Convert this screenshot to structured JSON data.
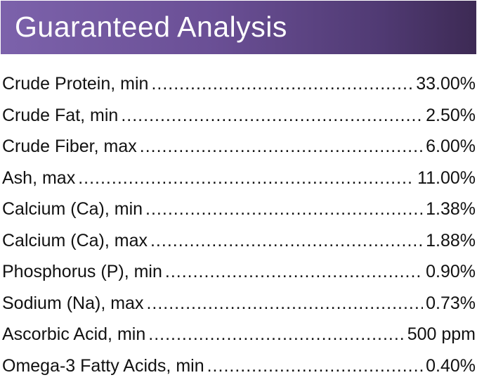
{
  "title": "Guaranteed Analysis",
  "colors": {
    "banner_start": "#7c62ab",
    "banner_end": "#3d2a54",
    "title_text": "#ffffff"
  },
  "rows": [
    {
      "label": "Crude Protein, min",
      "value": "33.00%"
    },
    {
      "label": "Crude Fat, min",
      "value": "2.50%"
    },
    {
      "label": "Crude Fiber, max",
      "value": "6.00%"
    },
    {
      "label": "Ash, max",
      "value": "11.00%"
    },
    {
      "label": "Calcium (Ca), min",
      "value": "1.38%"
    },
    {
      "label": "Calcium (Ca), max",
      "value": "1.88%"
    },
    {
      "label": "Phosphorus (P), min",
      "value": "0.90%"
    },
    {
      "label": "Sodium (Na), max",
      "value": "0.73%"
    },
    {
      "label": "Ascorbic Acid, min",
      "value": "500 ppm"
    },
    {
      "label": "Omega-3 Fatty Acids, min",
      "value": "0.40%"
    }
  ]
}
